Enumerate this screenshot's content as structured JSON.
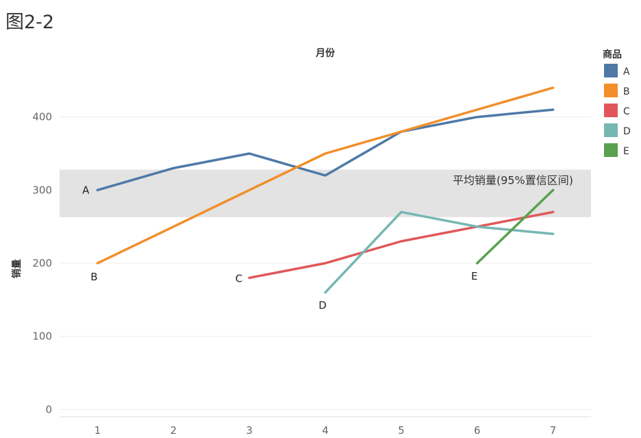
{
  "figure_label": "图2-2",
  "chart_data": {
    "type": "line",
    "xlabel": "月份",
    "ylabel": "销量",
    "x": [
      1,
      2,
      3,
      4,
      5,
      6,
      7
    ],
    "xlim": [
      0.5,
      7.5
    ],
    "ylim": [
      -10,
      470
    ],
    "yticks": [
      0,
      100,
      200,
      300,
      400
    ],
    "grid": true,
    "legend": {
      "title": "商品",
      "placement": "right"
    },
    "series": [
      {
        "name": "A",
        "color": "#4e79a7",
        "x": [
          1,
          2,
          3,
          4,
          5,
          6,
          7
        ],
        "values": [
          300,
          330,
          350,
          320,
          380,
          400,
          410
        ]
      },
      {
        "name": "B",
        "color": "#f28e2b",
        "x": [
          1,
          2,
          3,
          4,
          5,
          6,
          7
        ],
        "values": [
          200,
          250,
          300,
          350,
          380,
          410,
          440
        ]
      },
      {
        "name": "C",
        "color": "#e15759",
        "x": [
          3,
          4,
          5,
          6,
          7
        ],
        "values": [
          180,
          200,
          230,
          250,
          270
        ]
      },
      {
        "name": "D",
        "color": "#76b7b2",
        "x": [
          4,
          5,
          6,
          7
        ],
        "values": [
          160,
          270,
          250,
          240
        ]
      },
      {
        "name": "E",
        "color": "#59a14f",
        "x": [
          6,
          7
        ],
        "values": [
          200,
          300
        ]
      }
    ],
    "band": {
      "label": "平均销量(95%置信区间)",
      "low": 263,
      "high": 328,
      "color": "#e3e3e3"
    }
  }
}
